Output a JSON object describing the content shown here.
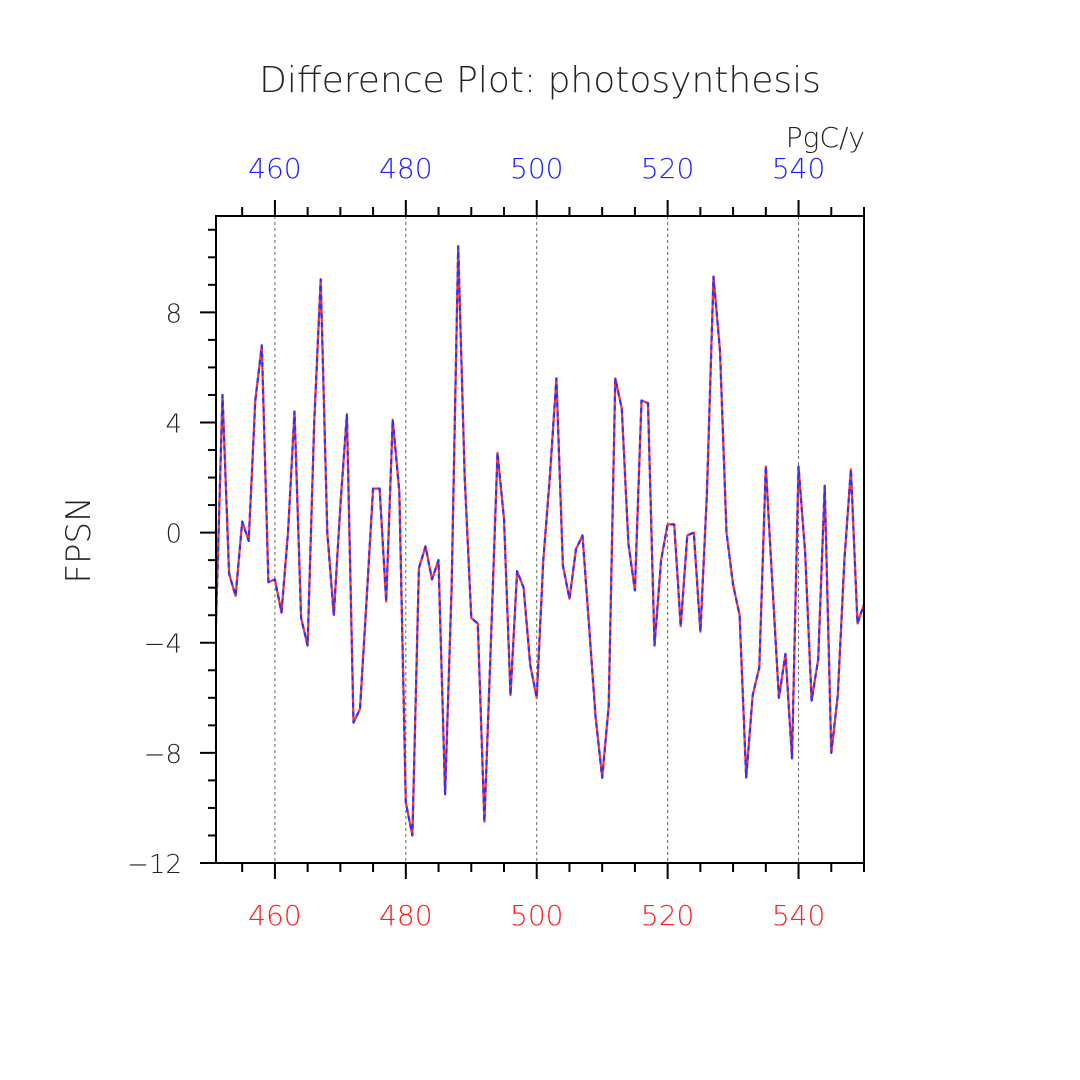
{
  "chart_data": {
    "type": "line",
    "title": "Difference Plot: photosynthesis",
    "ylabel": "FPSN",
    "units": "PgC/y",
    "xlim": [
      451,
      550
    ],
    "ylim": [
      -12,
      11.5
    ],
    "x_ticks": [
      460,
      480,
      500,
      520,
      540
    ],
    "y_ticks": [
      -12,
      -8,
      -4,
      0,
      4,
      8
    ],
    "grid": "vertical dashed at major x ticks",
    "colors": {
      "bottom_axis": "#ff2020",
      "top_axis": "#2020ff",
      "series_a": "#ff3030",
      "series_b": "#3030ff",
      "frame": "#000000"
    },
    "series": [
      {
        "values_from": "y",
        "style": "red solid + blue dashed overlay"
      }
    ],
    "x_start": 451,
    "y": [
      -3.3,
      5.0,
      -1.5,
      -2.3,
      0.4,
      -0.3,
      4.8,
      6.8,
      -1.8,
      -1.7,
      -2.9,
      0.0,
      4.4,
      -3.1,
      -4.1,
      4.0,
      9.2,
      0.0,
      -3.0,
      1.0,
      4.3,
      -6.9,
      -6.4,
      -2.5,
      1.6,
      1.6,
      -2.5,
      4.1,
      1.5,
      -9.8,
      -11.0,
      -1.3,
      -0.5,
      -1.7,
      -1.0,
      -9.5,
      -2.0,
      10.4,
      2.0,
      -3.1,
      -3.3,
      -10.5,
      -4.0,
      2.9,
      0.5,
      -5.9,
      -1.4,
      -2.0,
      -4.8,
      -6.0,
      -1.0,
      2.0,
      5.6,
      -1.2,
      -2.4,
      -0.6,
      -0.1,
      -3.4,
      -6.7,
      -8.9,
      -6.3,
      5.6,
      4.5,
      -0.4,
      -2.1,
      4.8,
      4.7,
      -4.1,
      -1.0,
      0.3,
      0.3,
      -3.4,
      -0.1,
      0.0,
      -3.6,
      1.4,
      9.3,
      6.6,
      0.0,
      -1.9,
      -3.0,
      -8.9,
      -5.9,
      -4.9,
      2.4,
      -1.9,
      -6.0,
      -4.4,
      -8.2,
      2.4,
      -0.7,
      -6.1,
      -4.6,
      1.7,
      -8.0,
      -5.9,
      -1.0,
      2.3,
      -3.3,
      -2.6
    ]
  }
}
